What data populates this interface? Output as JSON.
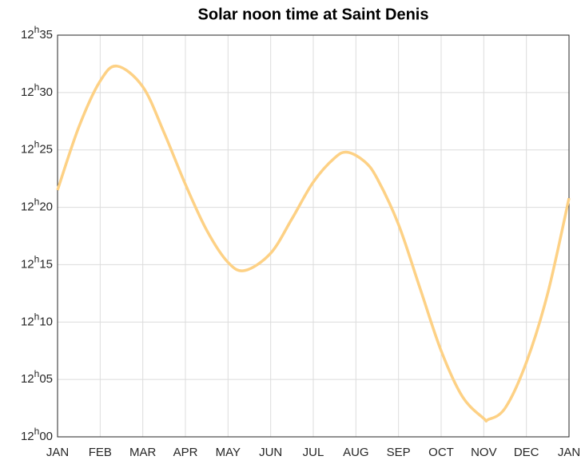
{
  "chart_data": {
    "type": "line",
    "title": "Solar noon time at Saint Denis",
    "x": [
      0,
      0.5,
      1,
      1.4,
      2,
      2.5,
      3,
      3.5,
      4,
      4.4,
      5,
      5.5,
      6,
      6.5,
      6.8,
      7.2,
      7.5,
      8,
      8.5,
      9,
      9.5,
      10,
      10.1,
      10.5,
      11,
      11.5,
      12
    ],
    "series": [
      {
        "name": "Solar noon",
        "color": "#fdd185",
        "values": [
          21.5,
          27,
          31,
          32.3,
          30.5,
          26.5,
          22,
          18,
          15.2,
          14.5,
          16,
          19,
          22.2,
          24.3,
          24.8,
          24,
          22.5,
          18.5,
          13,
          7.5,
          3.5,
          1.6,
          1.5,
          2.5,
          6.5,
          12.5,
          20.8
        ]
      }
    ],
    "xlim": [
      0,
      12
    ],
    "xticks": [
      {
        "value": 0,
        "label": "JAN"
      },
      {
        "value": 1,
        "label": "FEB"
      },
      {
        "value": 2,
        "label": "MAR"
      },
      {
        "value": 3,
        "label": "APR"
      },
      {
        "value": 4,
        "label": "MAY"
      },
      {
        "value": 5,
        "label": "JUN"
      },
      {
        "value": 6,
        "label": "JUL"
      },
      {
        "value": 7,
        "label": "AUG"
      },
      {
        "value": 8,
        "label": "SEP"
      },
      {
        "value": 9,
        "label": "OCT"
      },
      {
        "value": 10,
        "label": "NOV"
      },
      {
        "value": 11,
        "label": "DEC"
      },
      {
        "value": 12,
        "label": "JAN"
      }
    ],
    "ylim": [
      0,
      35
    ],
    "yticks": [
      {
        "value": 0,
        "label": "12h00"
      },
      {
        "value": 5,
        "label": "12h05"
      },
      {
        "value": 10,
        "label": "12h10"
      },
      {
        "value": 15,
        "label": "12h15"
      },
      {
        "value": 20,
        "label": "12h20"
      },
      {
        "value": 25,
        "label": "12h25"
      },
      {
        "value": 30,
        "label": "12h30"
      },
      {
        "value": 35,
        "label": "12h35"
      }
    ],
    "grid": true
  }
}
